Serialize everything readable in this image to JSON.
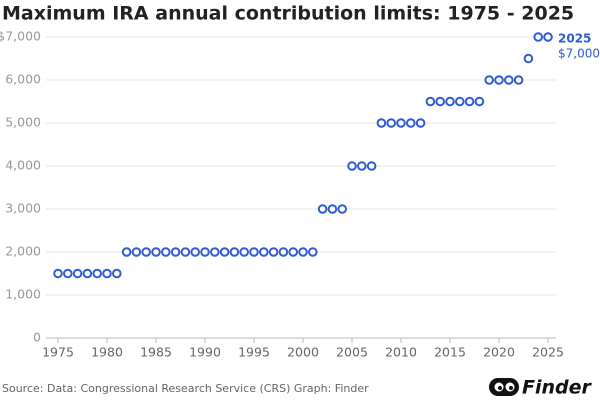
{
  "chart_data": {
    "type": "scatter",
    "title": "Maximum IRA annual contribution limits: 1975 - 2025",
    "source": "Source: Data: Congressional Research Service (CRS) Graph: Finder",
    "logo": "Finder",
    "color": "#2f5bd3",
    "grid": true,
    "x": [
      1975,
      1976,
      1977,
      1978,
      1979,
      1980,
      1981,
      1982,
      1983,
      1984,
      1985,
      1986,
      1987,
      1988,
      1989,
      1990,
      1991,
      1992,
      1993,
      1994,
      1995,
      1996,
      1997,
      1998,
      1999,
      2000,
      2001,
      2002,
      2003,
      2004,
      2005,
      2006,
      2007,
      2008,
      2009,
      2010,
      2011,
      2012,
      2013,
      2014,
      2015,
      2016,
      2017,
      2018,
      2019,
      2020,
      2021,
      2022,
      2023,
      2024,
      2025
    ],
    "values": [
      1500,
      1500,
      1500,
      1500,
      1500,
      1500,
      1500,
      2000,
      2000,
      2000,
      2000,
      2000,
      2000,
      2000,
      2000,
      2000,
      2000,
      2000,
      2000,
      2000,
      2000,
      2000,
      2000,
      2000,
      2000,
      2000,
      2000,
      3000,
      3000,
      3000,
      4000,
      4000,
      4000,
      5000,
      5000,
      5000,
      5000,
      5000,
      5500,
      5500,
      5500,
      5500,
      5500,
      5500,
      6000,
      6000,
      6000,
      6000,
      6500,
      7000,
      7000
    ],
    "xlim": [
      1975,
      2025
    ],
    "xticks": [
      1975,
      1980,
      1985,
      1990,
      1995,
      2000,
      2005,
      2010,
      2015,
      2020,
      2025
    ],
    "ylim": [
      0,
      7000
    ],
    "yticks": [
      0,
      {
        "value": 1000,
        "label": "1,000"
      },
      {
        "value": 2000,
        "label": "2,000"
      },
      {
        "value": 3000,
        "label": "3,000"
      },
      {
        "value": 4000,
        "label": "4,000"
      },
      {
        "value": 5000,
        "label": "5,000"
      },
      {
        "value": 6000,
        "label": "6,000"
      },
      {
        "value": 7000,
        "label": "$7,000"
      }
    ],
    "annotation": {
      "x": 2025,
      "y": 7000,
      "y_label": "$7,000"
    }
  }
}
